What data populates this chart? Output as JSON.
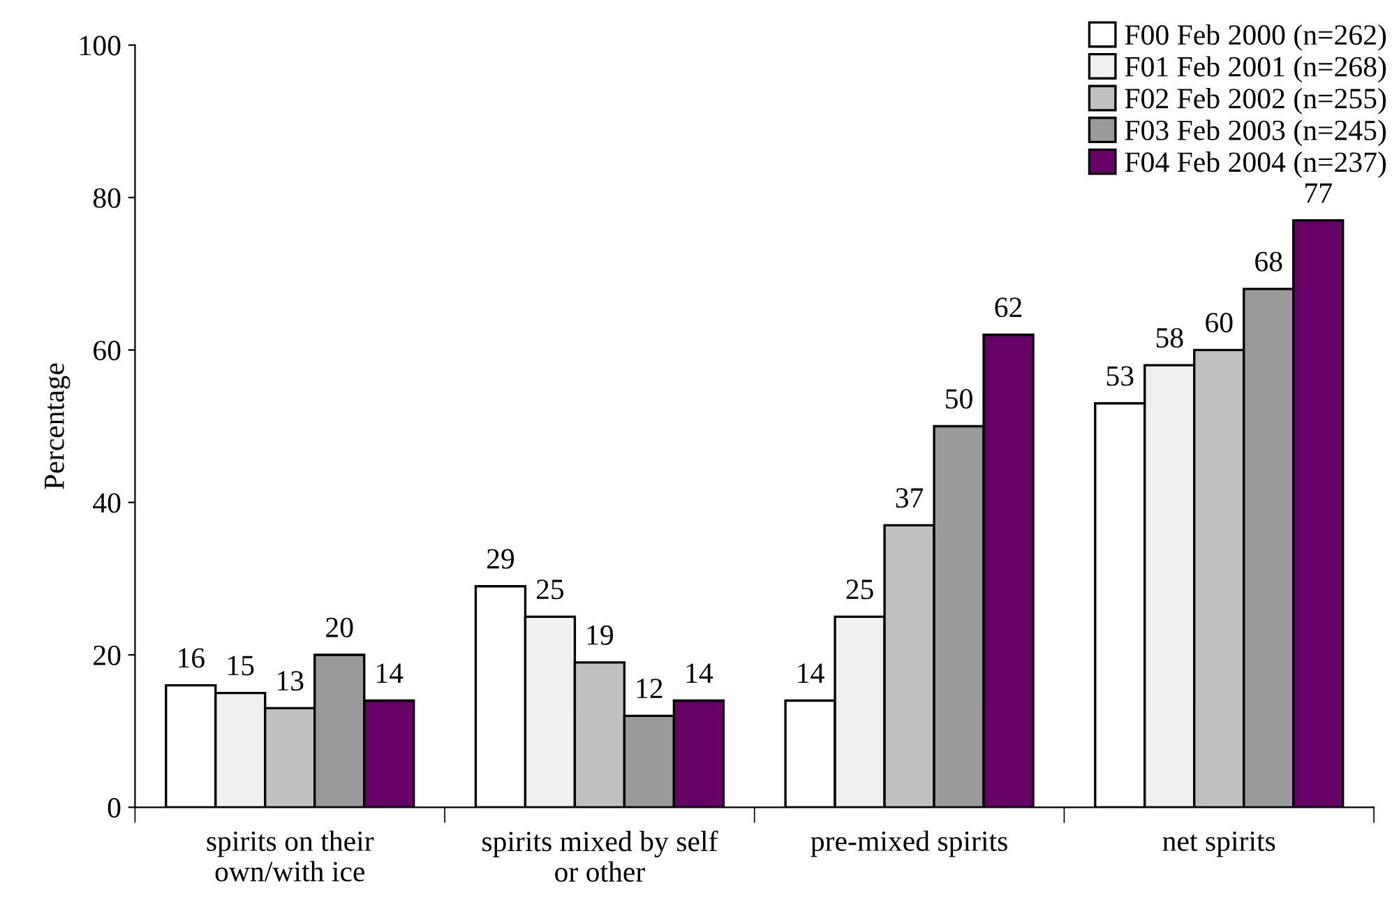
{
  "chart_data": {
    "type": "bar",
    "ylabel": "Percentage",
    "categories": [
      "spirits on their own/with ice",
      "spirits mixed by self or other",
      "pre-mixed spirits",
      "net spirits"
    ],
    "series": [
      {
        "name": "F00 Feb 2000 (n=262)",
        "color": "#ffffff",
        "values": [
          16,
          29,
          14,
          53
        ]
      },
      {
        "name": "F01 Feb 2001 (n=268)",
        "color": "#f0f0f0",
        "values": [
          15,
          25,
          25,
          58
        ]
      },
      {
        "name": "F02 Feb 2002 (n=255)",
        "color": "#c0c0c0",
        "values": [
          13,
          19,
          37,
          60
        ]
      },
      {
        "name": "F03 Feb 2003 (n=245)",
        "color": "#9a9a9a",
        "values": [
          20,
          12,
          50,
          68
        ]
      },
      {
        "name": "F04 Feb 2004 (n=237)",
        "color": "#660066",
        "values": [
          14,
          14,
          62,
          77
        ]
      }
    ],
    "ylim": [
      0,
      100
    ],
    "yticks": [
      0,
      20,
      40,
      60,
      80,
      100
    ],
    "data_labels": true,
    "legend": "top right",
    "grid": false
  }
}
